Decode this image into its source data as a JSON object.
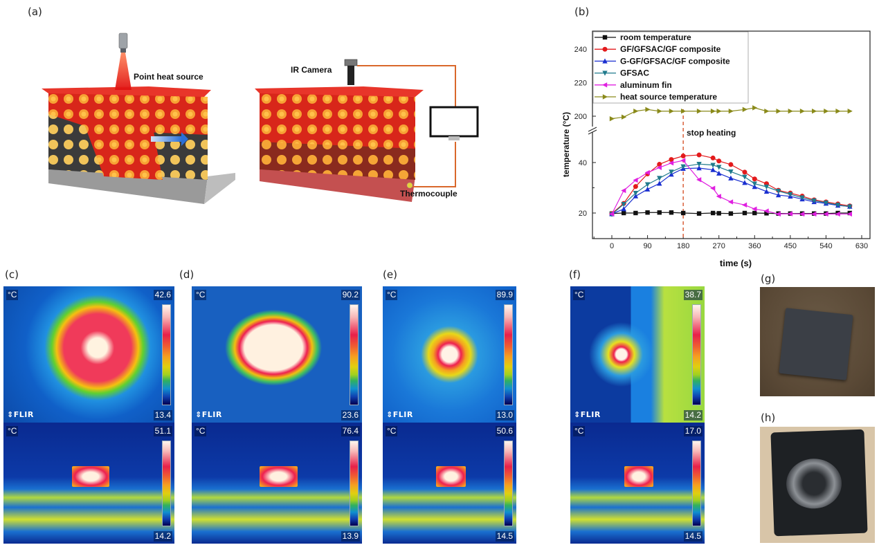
{
  "labels": {
    "a": "(a)",
    "b": "(b)",
    "c": "(c)",
    "d": "(d)",
    "e": "(e)",
    "f": "(f)",
    "g": "(g)",
    "h": "(h)"
  },
  "schematic": {
    "point_heat_source": "Point heat source",
    "ir_camera": "IR Camera",
    "thermocouple": "Thermocouple",
    "arrow_color": "#2a6fd6",
    "wire_color": "#d9672a",
    "plate_color": "#e03020"
  },
  "thermal_images": [
    {
      "id": "c",
      "top": {
        "unit": "°C",
        "max": "42.6",
        "min": "13.4",
        "logo": "FLIR"
      },
      "bottom": {
        "unit": "°C",
        "max": "51.1",
        "min": "14.2"
      }
    },
    {
      "id": "d",
      "top": {
        "unit": "°C",
        "max": "90.2",
        "min": "23.6",
        "logo": "FLIR"
      },
      "bottom": {
        "unit": "°C",
        "max": "76.4",
        "min": "13.9"
      }
    },
    {
      "id": "e",
      "top": {
        "unit": "°C",
        "max": "89.9",
        "min": "13.0",
        "logo": "FLIR"
      },
      "bottom": {
        "unit": "°C",
        "max": "50.6",
        "min": "14.5"
      }
    },
    {
      "id": "f",
      "top": {
        "unit": "°C",
        "max": "38.7",
        "min": "14.2",
        "logo": "FLIR"
      },
      "bottom": {
        "unit": "°C",
        "max": "17.0",
        "min": "14.5"
      }
    }
  ],
  "chart_data": {
    "type": "line",
    "title": "",
    "xlabel": "time (s)",
    "ylabel": "temperature (°C)",
    "xlim": [
      -45,
      650
    ],
    "xticks": [
      0,
      90,
      180,
      270,
      360,
      450,
      540,
      630
    ],
    "y_axis_break": true,
    "ylim_lower": [
      10,
      50
    ],
    "ylim_upper": [
      190,
      250
    ],
    "yticks": [
      20,
      40,
      200,
      220,
      240
    ],
    "legend_position": "top-left",
    "annotation": {
      "text": "stop heating",
      "x": 180,
      "style": "dashed vertical line",
      "color": "#d9603a"
    },
    "x": [
      0,
      30,
      60,
      90,
      120,
      150,
      180,
      220,
      255,
      270,
      300,
      335,
      360,
      390,
      420,
      450,
      480,
      510,
      540,
      570,
      600
    ],
    "series": [
      {
        "name": "room temperature",
        "color": "#111111",
        "marker": "square",
        "values": [
          19.8,
          20.0,
          20.0,
          20.2,
          20.2,
          20.2,
          20.0,
          19.8,
          20.0,
          19.9,
          19.8,
          20.0,
          20.0,
          19.9,
          19.8,
          19.8,
          19.8,
          19.8,
          19.8,
          20.0,
          20.0
        ]
      },
      {
        "name": "GF/GFSAC/GF composite",
        "color": "#e31a1c",
        "marker": "circle",
        "values": [
          19.8,
          23.8,
          30.5,
          35.5,
          39.3,
          41.2,
          42.6,
          43.0,
          41.8,
          40.6,
          39.2,
          36.2,
          33.5,
          31.6,
          29.0,
          27.9,
          26.7,
          25.2,
          24.4,
          23.6,
          22.8
        ]
      },
      {
        "name": "G-GF/GFSAC/GF composite",
        "color": "#1a2fd0",
        "marker": "triangle-up",
        "values": [
          19.6,
          21.6,
          26.7,
          29.4,
          31.7,
          35.3,
          37.6,
          37.8,
          37.1,
          35.7,
          33.8,
          32.0,
          30.4,
          28.5,
          27.1,
          26.6,
          25.5,
          24.4,
          23.8,
          23.0,
          22.6
        ]
      },
      {
        "name": "GFSAC",
        "color": "#1f7a8c",
        "marker": "triangle-down",
        "values": [
          19.5,
          23.5,
          27.9,
          31.3,
          33.8,
          36.3,
          38.4,
          39.4,
          39.0,
          38.2,
          36.4,
          34.3,
          31.6,
          30.4,
          28.7,
          27.4,
          26.1,
          24.9,
          24.1,
          23.2,
          22.5
        ]
      },
      {
        "name": "aluminum fin",
        "color": "#e020e0",
        "marker": "triangle-left",
        "values": [
          19.6,
          28.9,
          33.0,
          36.0,
          38.0,
          39.8,
          40.8,
          33.2,
          29.8,
          26.6,
          24.4,
          23.2,
          21.6,
          20.8,
          19.6,
          19.7,
          19.6,
          19.6,
          19.6,
          19.6,
          19.6
        ]
      },
      {
        "name": "heat source temperature",
        "color": "#8a8a1a",
        "marker": "triangle-right",
        "values": [
          198.5,
          199.5,
          203,
          204,
          203,
          203,
          203,
          203,
          203,
          203,
          203,
          204,
          205,
          203,
          203,
          203,
          203,
          203,
          203,
          203,
          203
        ]
      }
    ]
  }
}
